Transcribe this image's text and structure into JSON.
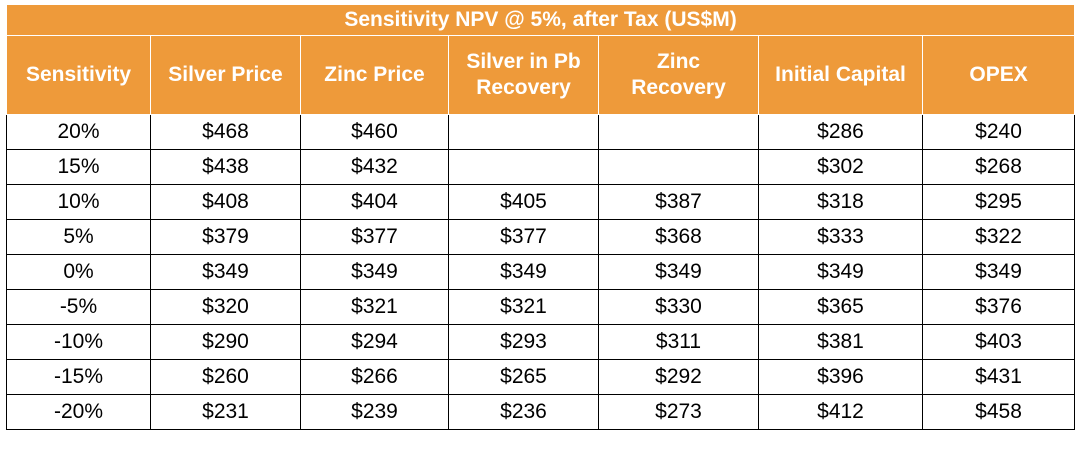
{
  "table": {
    "title": "Sensitivity NPV @ 5%, after Tax (US$M)",
    "headers": [
      "Sensitivity",
      "Silver Price",
      "Zinc Price",
      "Silver in Pb Recovery",
      "Zinc Recovery",
      "Initial Capital",
      "OPEX"
    ],
    "header_lines": [
      [
        "Sensitivity"
      ],
      [
        "Silver Price"
      ],
      [
        "Zinc Price"
      ],
      [
        "Silver in Pb",
        "Recovery"
      ],
      [
        "Zinc",
        "Recovery"
      ],
      [
        "Initial Capital"
      ],
      [
        "OPEX"
      ]
    ],
    "rows": [
      [
        "20%",
        "$468",
        "$460",
        "",
        "",
        "$286",
        "$240"
      ],
      [
        "15%",
        "$438",
        "$432",
        "",
        "",
        "$302",
        "$268"
      ],
      [
        "10%",
        "$408",
        "$404",
        "$405",
        "$387",
        "$318",
        "$295"
      ],
      [
        "5%",
        "$379",
        "$377",
        "$377",
        "$368",
        "$333",
        "$322"
      ],
      [
        "0%",
        "$349",
        "$349",
        "$349",
        "$349",
        "$349",
        "$349"
      ],
      [
        "-5%",
        "$320",
        "$321",
        "$321",
        "$330",
        "$365",
        "$376"
      ],
      [
        "-10%",
        "$290",
        "$294",
        "$293",
        "$311",
        "$381",
        "$403"
      ],
      [
        "-15%",
        "$260",
        "$266",
        "$265",
        "$292",
        "$396",
        "$431"
      ],
      [
        "-20%",
        "$231",
        "$239",
        "$236",
        "$273",
        "$412",
        "$458"
      ]
    ]
  },
  "colors": {
    "header_bg": "#ee9a3a",
    "header_text": "#ffffff",
    "cell_border": "#000000"
  }
}
